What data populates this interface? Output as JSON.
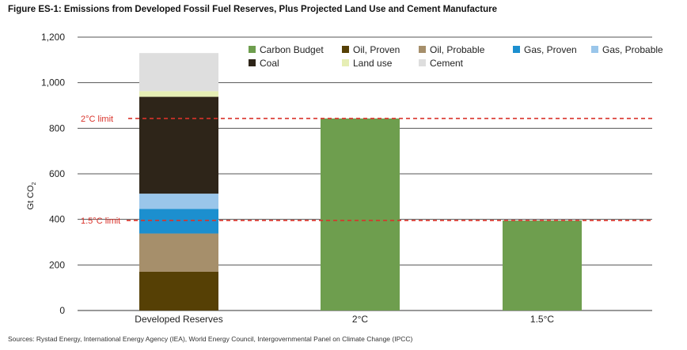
{
  "figure_title": "Figure ES-1: Emissions from Developed Fossil Fuel Reserves, Plus Projected Land Use and Cement Manufacture",
  "sources": "Sources: Rystad Energy, International Energy Agency (IEA), World Energy Council, Intergovernmental Panel on Climate Change (IPCC)",
  "chart_data": {
    "type": "bar",
    "stacked": true,
    "title": "Figure ES-1: Emissions from Developed Fossil Fuel Reserves, Plus Projected Land Use and Cement Manufacture",
    "ylabel_main": "Gt CO",
    "ylabel_sub": "2",
    "ylim": [
      0,
      1200
    ],
    "yticks": [
      {
        "v": 0,
        "label": "0"
      },
      {
        "v": 200,
        "label": "200"
      },
      {
        "v": 400,
        "label": "400"
      },
      {
        "v": 600,
        "label": "600"
      },
      {
        "v": 800,
        "label": "800"
      },
      {
        "v": 1000,
        "label": "1,000"
      },
      {
        "v": 1200,
        "label": "1,200"
      }
    ],
    "grid": true,
    "legend_position": "top-right",
    "categories": [
      "Developed Reserves",
      "2°C",
      "1.5°C"
    ],
    "series": [
      {
        "name": "Carbon Budget",
        "color": "#6e9e4e",
        "values": [
          0,
          843,
          395
        ]
      },
      {
        "name": "Oil, Proven",
        "color": "#564005",
        "values": [
          170,
          0,
          0
        ]
      },
      {
        "name": "Oil, Probable",
        "color": "#a68f6b",
        "values": [
          168,
          0,
          0
        ]
      },
      {
        "name": "Gas, Proven",
        "color": "#1c8fcf",
        "values": [
          108,
          0,
          0
        ]
      },
      {
        "name": "Gas, Probable",
        "color": "#9ac6ea",
        "values": [
          67,
          0,
          0
        ]
      },
      {
        "name": "Coal",
        "color": "#2e2519",
        "values": [
          425,
          0,
          0
        ]
      },
      {
        "name": "Land use",
        "color": "#e6eeb4",
        "values": [
          25,
          0,
          0
        ]
      },
      {
        "name": "Cement",
        "color": "#dedede",
        "values": [
          167,
          0,
          0
        ]
      }
    ],
    "reference_lines": [
      {
        "label": "2°C limit",
        "value": 843,
        "color": "#d9332b"
      },
      {
        "label": "1.5°C limit",
        "value": 395,
        "color": "#d9332b"
      }
    ]
  }
}
